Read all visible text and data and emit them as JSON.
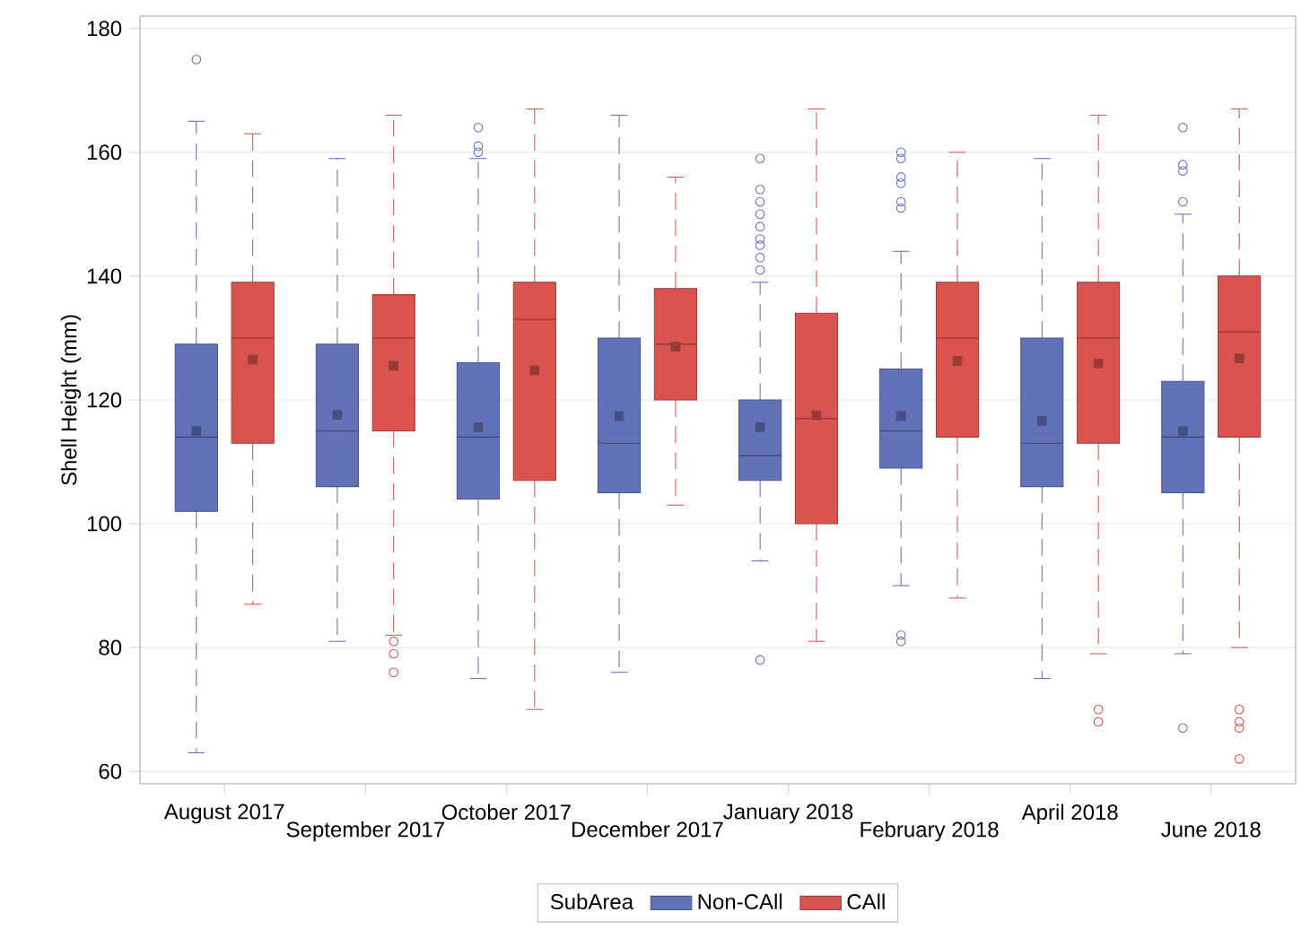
{
  "chart_data": {
    "type": "box",
    "ylabel": "Shell Height (mm)",
    "legend_title": "SubArea",
    "categories": [
      "August 2017",
      "September 2017",
      "October 2017",
      "December 2017",
      "January 2018",
      "February 2018",
      "April 2018",
      "June 2018"
    ],
    "ylim": [
      58,
      182
    ],
    "yticks": [
      60,
      80,
      100,
      120,
      140,
      160,
      180
    ],
    "grid": "y",
    "legend": "bottom",
    "marker": "square",
    "line_style": "dashed",
    "series": [
      {
        "name": "Non-CAll",
        "color": "#6272b8",
        "boxes": [
          {
            "low": 63,
            "q1": 102,
            "median": 114,
            "q3": 129,
            "high": 165,
            "mean": 115,
            "outliers": [
              175
            ]
          },
          {
            "low": 81,
            "q1": 106,
            "median": 115,
            "q3": 129,
            "high": 159,
            "mean": 117.6
          },
          {
            "low": 75,
            "q1": 104,
            "median": 114,
            "q3": 126,
            "high": 159,
            "mean": 115.6,
            "outliers": [
              164,
              161,
              160
            ]
          },
          {
            "low": 76,
            "q1": 105,
            "median": 113,
            "q3": 130,
            "high": 166,
            "mean": 117.4
          },
          {
            "low": 94,
            "q1": 107,
            "median": 111,
            "q3": 120,
            "high": 139,
            "mean": 115.6,
            "outliers": [
              159,
              154,
              152,
              150,
              148,
              146,
              145,
              143,
              141,
              78
            ]
          },
          {
            "low": 90,
            "q1": 109,
            "median": 115,
            "q3": 125,
            "high": 144,
            "mean": 117.4,
            "outliers": [
              160,
              159,
              156,
              155,
              152,
              151,
              82,
              81
            ]
          },
          {
            "low": 75,
            "q1": 106,
            "median": 113,
            "q3": 130,
            "high": 159,
            "mean": 116.6
          },
          {
            "low": 79,
            "q1": 105,
            "median": 114,
            "q3": 123,
            "high": 150,
            "mean": 115,
            "outliers": [
              164,
              158,
              157,
              152,
              67
            ]
          }
        ]
      },
      {
        "name": "CAll",
        "color": "#d9534f",
        "boxes": [
          {
            "low": 87,
            "q1": 113,
            "median": 130,
            "q3": 139,
            "high": 163,
            "mean": 126.5
          },
          {
            "low": 82,
            "q1": 115,
            "median": 130,
            "q3": 137,
            "high": 166,
            "mean": 125.5,
            "outliers": [
              81,
              79,
              76
            ]
          },
          {
            "low": 70,
            "q1": 107,
            "median": 133,
            "q3": 139,
            "high": 167,
            "mean": 124.8
          },
          {
            "low": 103,
            "q1": 120,
            "median": 129,
            "q3": 138,
            "high": 156,
            "mean": 128.6
          },
          {
            "low": 81,
            "q1": 100,
            "median": 117,
            "q3": 134,
            "high": 167,
            "mean": 117.5
          },
          {
            "low": 88,
            "q1": 114,
            "median": 130,
            "q3": 139,
            "high": 160,
            "mean": 126.3
          },
          {
            "low": 79,
            "q1": 113,
            "median": 130,
            "q3": 139,
            "high": 166,
            "mean": 125.9,
            "outliers": [
              70,
              68
            ]
          },
          {
            "low": 80,
            "q1": 114,
            "median": 131,
            "q3": 140,
            "high": 167,
            "mean": 126.7,
            "outliers": [
              70,
              68,
              67,
              62
            ]
          }
        ]
      }
    ]
  }
}
